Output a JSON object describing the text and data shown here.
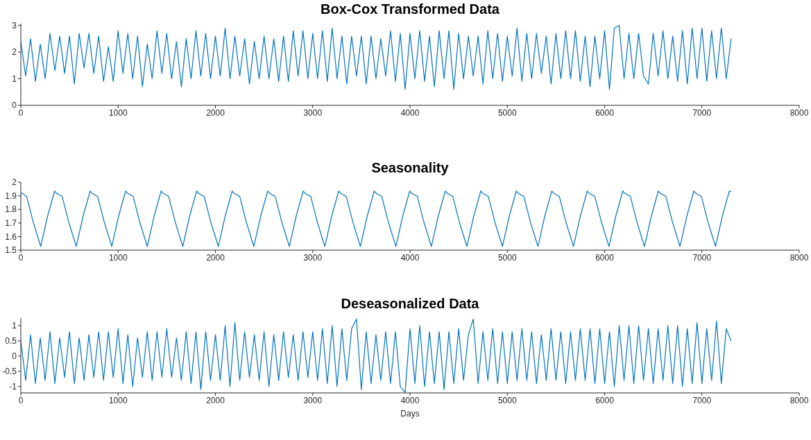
{
  "chart_data": [
    {
      "type": "line",
      "title": "Box-Cox Transformed Data",
      "xlim": [
        0,
        8000
      ],
      "xticks": [
        0,
        1000,
        2000,
        3000,
        4000,
        5000,
        6000,
        7000,
        8000
      ],
      "ylim": [
        0,
        3.07
      ],
      "yticks": [
        0,
        1,
        2,
        3
      ],
      "x": [
        0,
        50,
        100,
        150,
        200,
        250,
        300,
        350,
        400,
        450,
        500,
        550,
        600,
        650,
        700,
        750,
        800,
        850,
        900,
        950,
        1000,
        1050,
        1100,
        1150,
        1200,
        1250,
        1300,
        1350,
        1400,
        1450,
        1500,
        1550,
        1600,
        1650,
        1700,
        1750,
        1800,
        1850,
        1900,
        1950,
        2000,
        2050,
        2100,
        2150,
        2200,
        2250,
        2300,
        2350,
        2400,
        2450,
        2500,
        2550,
        2600,
        2650,
        2700,
        2750,
        2800,
        2850,
        2900,
        2950,
        3000,
        3050,
        3100,
        3150,
        3200,
        3250,
        3300,
        3350,
        3400,
        3450,
        3500,
        3550,
        3600,
        3650,
        3700,
        3750,
        3800,
        3850,
        3900,
        3950,
        4000,
        4050,
        4100,
        4150,
        4200,
        4250,
        4300,
        4350,
        4400,
        4450,
        4500,
        4550,
        4600,
        4650,
        4700,
        4750,
        4800,
        4850,
        4900,
        4950,
        5000,
        5050,
        5100,
        5150,
        5200,
        5250,
        5300,
        5350,
        5400,
        5450,
        5500,
        5550,
        5600,
        5650,
        5700,
        5750,
        5800,
        5850,
        5900,
        5950,
        6000,
        6050,
        6100,
        6150,
        6200,
        6250,
        6300,
        6350,
        6400,
        6450,
        6500,
        6550,
        6600,
        6650,
        6700,
        6750,
        6800,
        6850,
        6900,
        6950,
        7000,
        7050,
        7100,
        7150,
        7200,
        7250,
        7300
      ],
      "series": [
        {
          "color": "#0072bd",
          "values": [
            2.4,
            1.1,
            2.5,
            0.9,
            2.3,
            1.0,
            2.7,
            1.3,
            2.6,
            1.2,
            2.6,
            0.8,
            2.7,
            1.4,
            2.7,
            1.2,
            2.6,
            0.9,
            2.2,
            0.9,
            2.8,
            1.2,
            2.7,
            1.0,
            2.6,
            0.7,
            2.3,
            1.0,
            2.8,
            1.2,
            2.7,
            1.0,
            2.4,
            0.7,
            2.5,
            1.0,
            2.8,
            1.1,
            2.7,
            1.0,
            2.6,
            1.1,
            2.9,
            1.0,
            2.6,
            1.1,
            2.5,
            0.8,
            2.4,
            1.0,
            2.6,
            1.0,
            2.5,
            0.9,
            2.6,
            0.9,
            2.8,
            1.1,
            2.8,
            1.0,
            2.7,
            1.0,
            2.8,
            0.9,
            2.9,
            1.0,
            2.6,
            0.8,
            2.6,
            1.1,
            2.6,
            0.8,
            2.6,
            1.0,
            2.5,
            1.1,
            2.8,
            0.9,
            2.7,
            0.6,
            2.7,
            1.0,
            2.8,
            0.9,
            2.6,
            0.7,
            2.8,
            1.0,
            2.8,
            0.6,
            2.7,
            1.0,
            2.6,
            1.1,
            2.6,
            0.8,
            2.8,
            1.0,
            2.7,
            0.9,
            2.6,
            1.1,
            2.9,
            0.9,
            2.7,
            1.0,
            2.7,
            1.2,
            2.6,
            0.8,
            2.7,
            1.0,
            2.8,
            1.0,
            2.8,
            0.9,
            2.6,
            0.7,
            2.6,
            1.0,
            2.8,
            0.6,
            2.9,
            3.0,
            1.0,
            2.7,
            1.0,
            2.7,
            1.1,
            0.8,
            2.7,
            1.1,
            2.8,
            1.0,
            2.6,
            0.9,
            2.8,
            0.8,
            2.9,
            1.0,
            2.9,
            0.9,
            2.8,
            1.0,
            2.9,
            1.0,
            2.5
          ]
        }
      ]
    },
    {
      "type": "line",
      "title": "Seasonality",
      "xlim": [
        0,
        8000
      ],
      "xticks": [
        0,
        1000,
        2000,
        3000,
        4000,
        5000,
        6000,
        7000,
        8000
      ],
      "ylim": [
        1.5,
        2
      ],
      "yticks": [
        1.5,
        1.6,
        1.7,
        1.8,
        1.9,
        2
      ],
      "x": [
        0,
        60,
        130,
        205,
        275,
        347,
        365,
        425,
        495,
        570,
        640,
        712,
        730,
        790,
        860,
        935,
        1005,
        1077,
        1095,
        1155,
        1225,
        1300,
        1370,
        1442,
        1460,
        1520,
        1590,
        1665,
        1735,
        1807,
        1825,
        1885,
        1955,
        2030,
        2100,
        2172,
        2190,
        2250,
        2320,
        2395,
        2465,
        2537,
        2555,
        2615,
        2685,
        2760,
        2830,
        2902,
        2920,
        2980,
        3050,
        3125,
        3195,
        3267,
        3285,
        3345,
        3415,
        3490,
        3560,
        3632,
        3650,
        3710,
        3780,
        3855,
        3925,
        3997,
        4015,
        4075,
        4145,
        4220,
        4290,
        4362,
        4380,
        4440,
        4510,
        4585,
        4655,
        4727,
        4745,
        4805,
        4875,
        4950,
        5020,
        5092,
        5110,
        5170,
        5240,
        5315,
        5385,
        5457,
        5475,
        5535,
        5605,
        5680,
        5750,
        5822,
        5840,
        5900,
        5970,
        6045,
        6115,
        6187,
        6205,
        6265,
        6335,
        6410,
        6480,
        6552,
        6570,
        6630,
        6700,
        6775,
        6845,
        6917,
        6935,
        6995,
        7065,
        7140,
        7210,
        7282,
        7300
      ],
      "series": [
        {
          "color": "#0072bd",
          "values": [
            1.925,
            1.895,
            1.7,
            1.527,
            1.75,
            1.935,
            1.92,
            1.895,
            1.7,
            1.527,
            1.75,
            1.935,
            1.92,
            1.895,
            1.7,
            1.527,
            1.75,
            1.935,
            1.92,
            1.895,
            1.7,
            1.527,
            1.75,
            1.935,
            1.92,
            1.895,
            1.7,
            1.527,
            1.75,
            1.935,
            1.92,
            1.895,
            1.7,
            1.527,
            1.75,
            1.935,
            1.92,
            1.895,
            1.7,
            1.527,
            1.75,
            1.935,
            1.92,
            1.895,
            1.7,
            1.527,
            1.75,
            1.935,
            1.92,
            1.895,
            1.7,
            1.527,
            1.75,
            1.935,
            1.92,
            1.895,
            1.7,
            1.527,
            1.75,
            1.935,
            1.92,
            1.895,
            1.7,
            1.527,
            1.75,
            1.935,
            1.92,
            1.895,
            1.7,
            1.527,
            1.75,
            1.935,
            1.92,
            1.895,
            1.7,
            1.527,
            1.75,
            1.935,
            1.92,
            1.895,
            1.7,
            1.527,
            1.75,
            1.935,
            1.92,
            1.895,
            1.7,
            1.527,
            1.75,
            1.935,
            1.92,
            1.895,
            1.7,
            1.527,
            1.75,
            1.935,
            1.92,
            1.895,
            1.7,
            1.527,
            1.75,
            1.935,
            1.92,
            1.895,
            1.7,
            1.527,
            1.75,
            1.935,
            1.92,
            1.895,
            1.7,
            1.527,
            1.75,
            1.935,
            1.92,
            1.895,
            1.7,
            1.527,
            1.75,
            1.935,
            1.93
          ]
        }
      ]
    },
    {
      "type": "line",
      "title": "Deseasonalized Data",
      "xlabel": "Days",
      "xlim": [
        0,
        8000
      ],
      "xticks": [
        0,
        1000,
        2000,
        3000,
        4000,
        5000,
        6000,
        7000,
        8000
      ],
      "ylim": [
        -1.21,
        1.25
      ],
      "yticks": [
        -1,
        -0.5,
        0,
        0.5,
        1
      ],
      "x": [
        0,
        50,
        100,
        150,
        200,
        250,
        300,
        350,
        400,
        450,
        500,
        550,
        600,
        650,
        700,
        750,
        800,
        850,
        900,
        950,
        1000,
        1050,
        1100,
        1150,
        1200,
        1250,
        1300,
        1350,
        1400,
        1450,
        1500,
        1550,
        1600,
        1650,
        1700,
        1750,
        1800,
        1850,
        1900,
        1950,
        2000,
        2050,
        2100,
        2150,
        2200,
        2250,
        2300,
        2350,
        2400,
        2450,
        2500,
        2550,
        2600,
        2650,
        2700,
        2750,
        2800,
        2850,
        2900,
        2950,
        3000,
        3050,
        3100,
        3150,
        3200,
        3250,
        3300,
        3350,
        3400,
        3450,
        3500,
        3550,
        3600,
        3650,
        3700,
        3750,
        3800,
        3850,
        3900,
        3950,
        4000,
        4050,
        4100,
        4150,
        4200,
        4250,
        4300,
        4350,
        4400,
        4450,
        4500,
        4550,
        4600,
        4650,
        4700,
        4750,
        4800,
        4850,
        4900,
        4950,
        5000,
        5050,
        5100,
        5150,
        5200,
        5250,
        5300,
        5350,
        5400,
        5450,
        5500,
        5550,
        5600,
        5650,
        5700,
        5750,
        5800,
        5850,
        5900,
        5950,
        6000,
        6050,
        6100,
        6150,
        6200,
        6250,
        6300,
        6350,
        6400,
        6450,
        6500,
        6550,
        6600,
        6650,
        6700,
        6750,
        6800,
        6850,
        6900,
        6950,
        7000,
        7050,
        7100,
        7150,
        7200,
        7250,
        7300
      ],
      "series": [
        {
          "color": "#0072bd",
          "values": [
            0.5,
            -0.8,
            0.7,
            -0.9,
            0.6,
            -0.8,
            0.8,
            -0.9,
            0.6,
            -0.7,
            0.8,
            -0.9,
            0.6,
            -0.8,
            0.7,
            -0.7,
            0.8,
            -0.8,
            0.8,
            -0.7,
            0.9,
            -0.9,
            0.7,
            -1.0,
            0.6,
            -0.7,
            0.8,
            -0.8,
            0.8,
            -0.7,
            0.9,
            -0.7,
            0.6,
            -0.8,
            0.8,
            -0.9,
            0.8,
            -1.1,
            0.8,
            -0.8,
            0.7,
            -0.8,
            1.0,
            -1.0,
            1.1,
            -0.8,
            0.8,
            -0.7,
            0.7,
            -0.8,
            0.8,
            -1.0,
            0.7,
            -0.8,
            0.8,
            -0.7,
            0.7,
            -0.8,
            0.8,
            -0.7,
            0.8,
            -0.8,
            0.9,
            -0.9,
            1.0,
            -1.0,
            0.9,
            -0.8,
            0.9,
            1.22,
            -1.1,
            0.8,
            -0.9,
            0.7,
            -0.8,
            0.8,
            -0.9,
            0.8,
            -1.0,
            -1.19,
            0.9,
            -0.9,
            1.0,
            -1.0,
            0.8,
            -0.9,
            0.8,
            -1.1,
            0.8,
            -0.9,
            0.9,
            -0.8,
            0.7,
            1.22,
            -0.9,
            0.8,
            -0.8,
            0.9,
            -0.9,
            0.8,
            -0.9,
            0.8,
            -0.8,
            0.9,
            -0.8,
            0.8,
            -0.9,
            0.7,
            -0.8,
            0.9,
            -0.8,
            0.8,
            -0.9,
            0.8,
            -0.8,
            0.9,
            -0.8,
            0.9,
            -0.9,
            0.9,
            -0.9,
            0.8,
            -1.0,
            1.0,
            -0.8,
            1.0,
            -0.9,
            1.0,
            -0.8,
            0.9,
            -0.9,
            0.9,
            -0.8,
            1.0,
            -0.9,
            1.0,
            -1.0,
            0.9,
            -0.9,
            1.1,
            -0.9,
            0.9,
            -0.8,
            1.15,
            -0.9,
            0.9,
            0.5
          ]
        }
      ]
    }
  ]
}
